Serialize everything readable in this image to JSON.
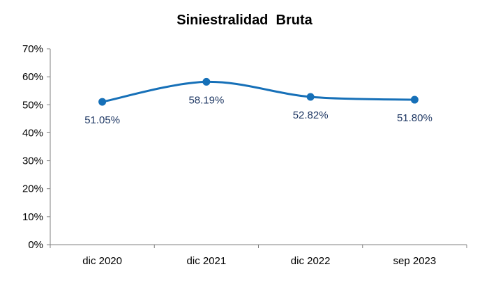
{
  "chart_data": {
    "type": "line",
    "title": "Siniestralidad  Bruta",
    "categories": [
      "dic 2020",
      "dic 2021",
      "dic 2022",
      "sep 2023"
    ],
    "values": [
      51.05,
      58.19,
      52.82,
      51.8
    ],
    "data_labels": [
      "51.05%",
      "58.19%",
      "52.82%",
      "51.80%"
    ],
    "ylim": [
      0,
      70
    ],
    "y_ticks": [
      0,
      10,
      20,
      30,
      40,
      50,
      60,
      70
    ],
    "y_tick_labels": [
      "0%",
      "10%",
      "20%",
      "30%",
      "40%",
      "50%",
      "60%",
      "70%"
    ],
    "xlabel": "",
    "ylabel": "",
    "grid": false,
    "smooth": true,
    "colors": {
      "line": "#1670B8",
      "label": "#1F3864"
    }
  }
}
